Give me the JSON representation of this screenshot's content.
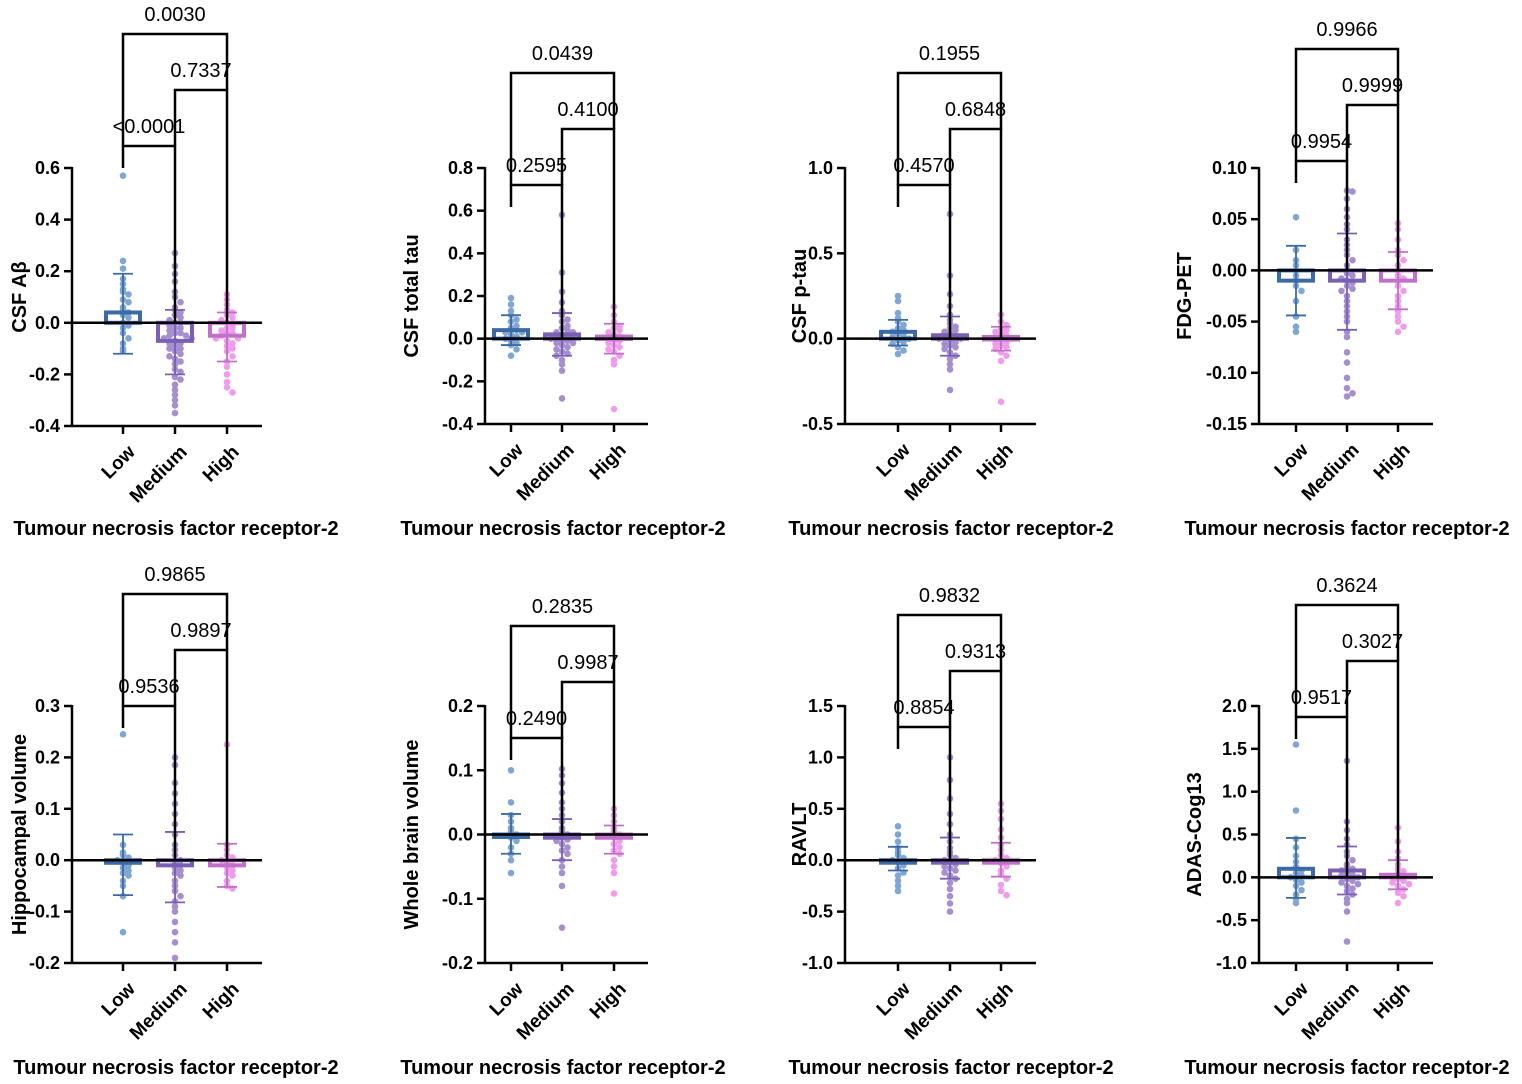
{
  "figure": {
    "group_colors": [
      "#7fa6d4",
      "#a68fcf",
      "#f09ced"
    ],
    "bar_colors": [
      "#3c6aa6",
      "#7a5fb4",
      "#c070c8"
    ],
    "axis_color": "#000000"
  },
  "chart_data": [
    {
      "type": "bar",
      "ylabel": "CSF Aβ",
      "xlabel": "Tumour necrosis factor receptor-2",
      "categories": [
        "Low",
        "Medium",
        "High"
      ],
      "ylim": [
        -0.4,
        0.6
      ],
      "yticks": [
        -0.4,
        -0.2,
        0.0,
        0.2,
        0.4,
        0.6
      ],
      "ytick_labels": [
        "-0.4",
        "-0.2",
        "0.0",
        "0.2",
        "0.4",
        "0.6"
      ],
      "means": [
        0.04,
        -0.07,
        -0.05
      ],
      "sd_low": [
        -0.12,
        -0.2,
        -0.15
      ],
      "sd_high": [
        0.19,
        0.05,
        0.04
      ],
      "points": [
        [
          0.57,
          0.24,
          0.21,
          0.17,
          0.15,
          0.13,
          0.12,
          0.11,
          0.09,
          0.08,
          0.06,
          0.05,
          0.04,
          0.03,
          0.02,
          0.0,
          -0.01,
          -0.02,
          -0.04,
          -0.06,
          -0.08,
          -0.1,
          -0.11
        ],
        [
          0.27,
          0.22,
          0.19,
          0.16,
          0.12,
          0.1,
          0.08,
          0.06,
          0.05,
          0.04,
          0.03,
          0.02,
          0.01,
          0.0,
          0.0,
          -0.01,
          -0.02,
          -0.02,
          -0.03,
          -0.04,
          -0.04,
          -0.05,
          -0.05,
          -0.06,
          -0.06,
          -0.07,
          -0.08,
          -0.08,
          -0.09,
          -0.1,
          -0.1,
          -0.11,
          -0.12,
          -0.13,
          -0.14,
          -0.15,
          -0.16,
          -0.18,
          -0.19,
          -0.21,
          -0.22,
          -0.24,
          -0.26,
          -0.28,
          -0.3,
          -0.32,
          -0.35
        ],
        [
          0.11,
          0.09,
          0.07,
          0.05,
          0.04,
          0.03,
          0.02,
          0.01,
          0.0,
          -0.01,
          -0.02,
          -0.02,
          -0.03,
          -0.04,
          -0.04,
          -0.05,
          -0.06,
          -0.06,
          -0.07,
          -0.08,
          -0.09,
          -0.1,
          -0.11,
          -0.13,
          -0.15,
          -0.17,
          -0.2,
          -0.23,
          -0.25,
          -0.27
        ]
      ],
      "comparisons": [
        {
          "from": 0,
          "to": 1,
          "p": "<0.0001"
        },
        {
          "from": 1,
          "to": 2,
          "p": "0.7337"
        },
        {
          "from": 0,
          "to": 2,
          "p": "0.0030"
        }
      ]
    },
    {
      "type": "bar",
      "ylabel": "CSF total tau",
      "xlabel": "Tumour necrosis factor receptor-2",
      "categories": [
        "Low",
        "Medium",
        "High"
      ],
      "ylim": [
        -0.4,
        0.8
      ],
      "yticks": [
        -0.4,
        -0.2,
        0.0,
        0.2,
        0.4,
        0.6,
        0.8
      ],
      "ytick_labels": [
        "-0.4",
        "-0.2",
        "0.0",
        "0.2",
        "0.4",
        "0.6",
        "0.8"
      ],
      "means": [
        0.04,
        0.02,
        0.01
      ],
      "sd_low": [
        -0.03,
        -0.08,
        -0.07
      ],
      "sd_high": [
        0.11,
        0.12,
        0.07
      ],
      "points": [
        [
          0.19,
          0.16,
          0.13,
          0.11,
          0.09,
          0.08,
          0.06,
          0.05,
          0.04,
          0.03,
          0.03,
          0.02,
          0.01,
          0.0,
          -0.01,
          -0.02,
          -0.03,
          -0.05,
          -0.08
        ],
        [
          0.58,
          0.31,
          0.22,
          0.17,
          0.13,
          0.11,
          0.09,
          0.08,
          0.06,
          0.05,
          0.04,
          0.03,
          0.03,
          0.02,
          0.01,
          0.01,
          0.0,
          0.0,
          -0.01,
          -0.01,
          -0.02,
          -0.02,
          -0.03,
          -0.04,
          -0.05,
          -0.06,
          -0.07,
          -0.08,
          -0.1,
          -0.12,
          -0.15,
          -0.28
        ],
        [
          0.15,
          0.11,
          0.08,
          0.06,
          0.05,
          0.04,
          0.03,
          0.02,
          0.01,
          0.0,
          -0.01,
          -0.01,
          -0.02,
          -0.03,
          -0.04,
          -0.05,
          -0.06,
          -0.08,
          -0.1,
          -0.12,
          -0.33
        ]
      ],
      "comparisons": [
        {
          "from": 0,
          "to": 1,
          "p": "0.2595"
        },
        {
          "from": 1,
          "to": 2,
          "p": "0.4100"
        },
        {
          "from": 0,
          "to": 2,
          "p": "0.0439"
        }
      ]
    },
    {
      "type": "bar",
      "ylabel": "CSF p-tau",
      "xlabel": "Tumour necrosis factor receptor-2",
      "categories": [
        "Low",
        "Medium",
        "High"
      ],
      "ylim": [
        -0.5,
        1.0
      ],
      "yticks": [
        -0.5,
        0.0,
        0.5,
        1.0
      ],
      "ytick_labels": [
        "-0.5",
        "0.0",
        "0.5",
        "1.0"
      ],
      "means": [
        0.04,
        0.02,
        0.01
      ],
      "sd_low": [
        -0.04,
        -0.1,
        -0.07
      ],
      "sd_high": [
        0.11,
        0.13,
        0.07
      ],
      "points": [
        [
          0.25,
          0.22,
          0.15,
          0.12,
          0.1,
          0.08,
          0.06,
          0.05,
          0.04,
          0.03,
          0.02,
          0.01,
          0.0,
          -0.01,
          -0.02,
          -0.03,
          -0.05,
          -0.07,
          -0.09
        ],
        [
          0.73,
          0.37,
          0.26,
          0.19,
          0.14,
          0.11,
          0.09,
          0.07,
          0.06,
          0.05,
          0.04,
          0.03,
          0.02,
          0.01,
          0.0,
          0.0,
          -0.01,
          -0.02,
          -0.03,
          -0.04,
          -0.05,
          -0.06,
          -0.08,
          -0.1,
          -0.12,
          -0.15,
          -0.18,
          -0.3
        ],
        [
          0.14,
          0.1,
          0.08,
          0.06,
          0.05,
          0.04,
          0.03,
          0.02,
          0.01,
          0.0,
          -0.01,
          -0.02,
          -0.03,
          -0.04,
          -0.05,
          -0.06,
          -0.08,
          -0.1,
          -0.13,
          -0.37
        ]
      ],
      "comparisons": [
        {
          "from": 0,
          "to": 1,
          "p": "0.4570"
        },
        {
          "from": 1,
          "to": 2,
          "p": "0.6848"
        },
        {
          "from": 0,
          "to": 2,
          "p": "0.1955"
        }
      ]
    },
    {
      "type": "bar",
      "ylabel": "FDG-PET",
      "xlabel": "Tumour necrosis factor receptor-2",
      "categories": [
        "Low",
        "Medium",
        "High"
      ],
      "ylim": [
        -0.15,
        0.1
      ],
      "yticks": [
        -0.15,
        -0.1,
        -0.05,
        0.0,
        0.05,
        0.1
      ],
      "ytick_labels": [
        "-0.15",
        "-0.10",
        "-0.05",
        "0.00",
        "0.05",
        "0.10"
      ],
      "means": [
        -0.01,
        -0.01,
        -0.01
      ],
      "sd_low": [
        -0.044,
        -0.058,
        -0.038
      ],
      "sd_high": [
        0.024,
        0.036,
        0.018
      ],
      "points": [
        [
          0.052,
          0.02,
          0.01,
          0.005,
          0.0,
          -0.005,
          -0.01,
          -0.015,
          -0.02,
          -0.03,
          -0.045,
          -0.055,
          -0.06
        ],
        [
          0.078,
          0.077,
          0.07,
          0.06,
          0.052,
          0.045,
          0.04,
          0.03,
          0.025,
          0.02,
          0.015,
          0.01,
          0.005,
          0.0,
          -0.003,
          -0.005,
          -0.008,
          -0.01,
          -0.012,
          -0.015,
          -0.018,
          -0.02,
          -0.025,
          -0.03,
          -0.035,
          -0.04,
          -0.045,
          -0.05,
          -0.06,
          -0.065,
          -0.08,
          -0.09,
          -0.105,
          -0.115,
          -0.123,
          -0.12
        ],
        [
          0.046,
          0.04,
          0.03,
          0.02,
          0.015,
          0.01,
          0.005,
          0.0,
          -0.005,
          -0.008,
          -0.01,
          -0.015,
          -0.02,
          -0.025,
          -0.03,
          -0.035,
          -0.04,
          -0.045,
          -0.05,
          -0.055,
          -0.06
        ]
      ],
      "comparisons": [
        {
          "from": 0,
          "to": 1,
          "p": "0.9954"
        },
        {
          "from": 1,
          "to": 2,
          "p": "0.9999"
        },
        {
          "from": 0,
          "to": 2,
          "p": "0.9966"
        }
      ]
    },
    {
      "type": "bar",
      "ylabel": "Hippocampal volume",
      "xlabel": "Tumour necrosis factor receptor-2",
      "categories": [
        "Low",
        "Medium",
        "High"
      ],
      "ylim": [
        -0.2,
        0.3
      ],
      "yticks": [
        -0.2,
        -0.1,
        0.0,
        0.1,
        0.2,
        0.3
      ],
      "ytick_labels": [
        "-0.2",
        "-0.1",
        "0.0",
        "0.1",
        "0.2",
        "0.3"
      ],
      "means": [
        -0.005,
        -0.01,
        -0.01
      ],
      "sd_low": [
        -0.068,
        -0.082,
        -0.052
      ],
      "sd_high": [
        0.05,
        0.055,
        0.032
      ],
      "points": [
        [
          0.245,
          0.03,
          0.015,
          0.01,
          0.005,
          0.0,
          -0.005,
          -0.01,
          -0.015,
          -0.02,
          -0.025,
          -0.03,
          -0.04,
          -0.05,
          -0.07,
          -0.14
        ],
        [
          0.2,
          0.185,
          0.15,
          0.13,
          0.11,
          0.09,
          0.07,
          0.05,
          0.03,
          0.02,
          0.01,
          0.0,
          -0.005,
          -0.01,
          -0.015,
          -0.02,
          -0.025,
          -0.03,
          -0.04,
          -0.05,
          -0.06,
          -0.07,
          -0.08,
          -0.09,
          -0.1,
          -0.12,
          -0.14,
          -0.16,
          -0.19
        ],
        [
          0.225,
          0.03,
          0.02,
          0.01,
          0.005,
          0.0,
          -0.005,
          -0.01,
          -0.015,
          -0.02,
          -0.025,
          -0.03,
          -0.04,
          -0.05,
          -0.055
        ]
      ],
      "comparisons": [
        {
          "from": 0,
          "to": 1,
          "p": "0.9536"
        },
        {
          "from": 1,
          "to": 2,
          "p": "0.9897"
        },
        {
          "from": 0,
          "to": 2,
          "p": "0.9865"
        }
      ]
    },
    {
      "type": "bar",
      "ylabel": "Whole brain volume",
      "xlabel": "Tumour necrosis factor receptor-2",
      "categories": [
        "Low",
        "Medium",
        "High"
      ],
      "ylim": [
        -0.2,
        0.2
      ],
      "yticks": [
        -0.2,
        -0.1,
        0.0,
        0.1,
        0.2
      ],
      "ytick_labels": [
        "-0.2",
        "-0.1",
        "0.0",
        "0.1",
        "0.2"
      ],
      "means": [
        0.0,
        -0.005,
        -0.005
      ],
      "sd_low": [
        -0.03,
        -0.04,
        -0.03
      ],
      "sd_high": [
        0.032,
        0.024,
        0.014
      ],
      "points": [
        [
          0.1,
          0.05,
          0.03,
          0.02,
          0.01,
          0.005,
          0.0,
          -0.005,
          -0.01,
          -0.02,
          -0.03,
          -0.04,
          -0.06
        ],
        [
          0.102,
          0.092,
          0.08,
          0.065,
          0.05,
          0.04,
          0.03,
          0.02,
          0.01,
          0.005,
          0.0,
          -0.003,
          -0.005,
          -0.008,
          -0.01,
          -0.015,
          -0.02,
          -0.025,
          -0.03,
          -0.04,
          -0.05,
          -0.06,
          -0.08,
          -0.145
        ],
        [
          0.04,
          0.03,
          0.02,
          0.01,
          0.005,
          0.0,
          -0.005,
          -0.01,
          -0.015,
          -0.02,
          -0.025,
          -0.03,
          -0.04,
          -0.05,
          -0.06,
          -0.092
        ]
      ],
      "comparisons": [
        {
          "from": 0,
          "to": 1,
          "p": "0.2490"
        },
        {
          "from": 1,
          "to": 2,
          "p": "0.9987"
        },
        {
          "from": 0,
          "to": 2,
          "p": "0.2835"
        }
      ]
    },
    {
      "type": "bar",
      "ylabel": "RAVLT",
      "xlabel": "Tumour necrosis factor receptor-2",
      "categories": [
        "Low",
        "Medium",
        "High"
      ],
      "ylim": [
        -1.0,
        1.5
      ],
      "yticks": [
        -1.0,
        -0.5,
        0.0,
        0.5,
        1.0,
        1.5
      ],
      "ytick_labels": [
        "-1.0",
        "-0.5",
        "0.0",
        "0.5",
        "1.0",
        "1.5"
      ],
      "means": [
        0.0,
        0.0,
        0.0
      ],
      "sd_low": [
        -0.1,
        -0.18,
        -0.16
      ],
      "sd_high": [
        0.13,
        0.22,
        0.17
      ],
      "points": [
        [
          0.33,
          0.25,
          0.18,
          0.12,
          0.08,
          0.05,
          0.02,
          0.0,
          -0.02,
          -0.05,
          -0.08,
          -0.12,
          -0.15,
          -0.2,
          -0.25,
          -0.3
        ],
        [
          1.0,
          0.78,
          0.6,
          0.45,
          0.35,
          0.25,
          0.18,
          0.12,
          0.08,
          0.05,
          0.02,
          0.0,
          -0.02,
          -0.04,
          -0.06,
          -0.08,
          -0.1,
          -0.12,
          -0.15,
          -0.18,
          -0.22,
          -0.28,
          -0.35,
          -0.42,
          -0.5
        ],
        [
          0.55,
          0.48,
          0.4,
          0.3,
          0.22,
          0.15,
          0.1,
          0.05,
          0.02,
          0.0,
          -0.03,
          -0.06,
          -0.1,
          -0.14,
          -0.18,
          -0.24,
          -0.3,
          -0.34
        ]
      ],
      "comparisons": [
        {
          "from": 0,
          "to": 1,
          "p": "0.8854"
        },
        {
          "from": 1,
          "to": 2,
          "p": "0.9313"
        },
        {
          "from": 0,
          "to": 2,
          "p": "0.9832"
        }
      ]
    },
    {
      "type": "bar",
      "ylabel": "ADAS-Cog13",
      "xlabel": "Tumour necrosis factor receptor-2",
      "categories": [
        "Low",
        "Medium",
        "High"
      ],
      "ylim": [
        -1.0,
        2.0
      ],
      "yticks": [
        -1.0,
        -0.5,
        0.0,
        0.5,
        1.0,
        1.5,
        2.0
      ],
      "ytick_labels": [
        "-1.0",
        "-0.5",
        "0.0",
        "0.5",
        "1.0",
        "1.5",
        "2.0"
      ],
      "means": [
        0.1,
        0.08,
        0.03
      ],
      "sd_low": [
        -0.24,
        -0.2,
        -0.14
      ],
      "sd_high": [
        0.46,
        0.36,
        0.2
      ],
      "points": [
        [
          1.55,
          0.78,
          0.45,
          0.35,
          0.25,
          0.18,
          0.12,
          0.08,
          0.05,
          0.02,
          0.0,
          -0.03,
          -0.06,
          -0.1,
          -0.15,
          -0.2,
          -0.25,
          -0.3
        ],
        [
          1.36,
          0.65,
          0.55,
          0.45,
          0.38,
          0.3,
          0.25,
          0.2,
          0.15,
          0.12,
          0.1,
          0.08,
          0.05,
          0.03,
          0.02,
          0.0,
          -0.02,
          -0.04,
          -0.06,
          -0.08,
          -0.1,
          -0.13,
          -0.16,
          -0.2,
          -0.25,
          -0.3,
          -0.4,
          -0.75
        ],
        [
          0.58,
          0.42,
          0.3,
          0.22,
          0.15,
          0.1,
          0.07,
          0.05,
          0.03,
          0.0,
          -0.02,
          -0.04,
          -0.06,
          -0.08,
          -0.1,
          -0.14,
          -0.18,
          -0.22,
          -0.3
        ]
      ],
      "comparisons": [
        {
          "from": 0,
          "to": 1,
          "p": "0.9517"
        },
        {
          "from": 1,
          "to": 2,
          "p": "0.3027"
        },
        {
          "from": 0,
          "to": 2,
          "p": "0.3624"
        }
      ]
    }
  ]
}
